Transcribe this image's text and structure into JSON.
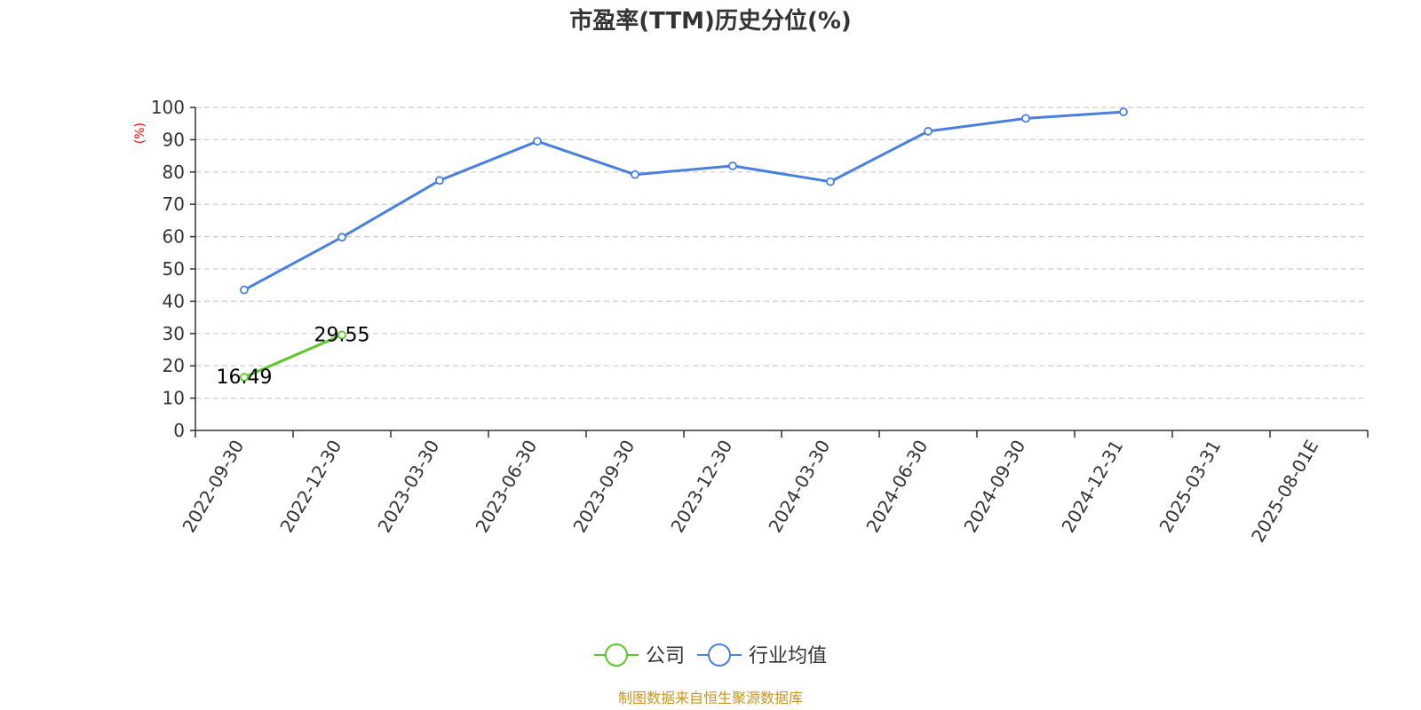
{
  "chart_data": {
    "type": "line",
    "title": "市盈率(TTM)历史分位(%)",
    "ylabel": "(%)",
    "xlabel": "",
    "ylim": [
      0,
      100
    ],
    "yticks": [
      0,
      10,
      20,
      30,
      40,
      50,
      60,
      70,
      80,
      90,
      100
    ],
    "grid": true,
    "legend_position": "bottom-center",
    "categories": [
      "2022-09-30",
      "2022-12-30",
      "2023-03-30",
      "2023-06-30",
      "2023-09-30",
      "2023-12-30",
      "2024-03-30",
      "2024-06-30",
      "2024-09-30",
      "2024-12-31",
      "2025-03-31",
      "2025-08-01E"
    ],
    "series": [
      {
        "name": "公司",
        "color": "#5cc72a",
        "values": [
          16.49,
          29.55,
          null,
          null,
          null,
          null,
          null,
          null,
          null,
          null,
          null,
          null
        ],
        "labels": [
          "16.49",
          "29.55"
        ]
      },
      {
        "name": "行业均值",
        "color": "#4a80dc",
        "values": [
          43.5,
          59.8,
          77.4,
          89.5,
          79.2,
          81.9,
          77.0,
          92.6,
          96.6,
          98.6,
          null,
          null
        ]
      }
    ],
    "ylabel_color": "#ff0000"
  },
  "footer": {
    "source": "制图数据来自恒生聚源数据库",
    "source_color": "#c8961e"
  }
}
